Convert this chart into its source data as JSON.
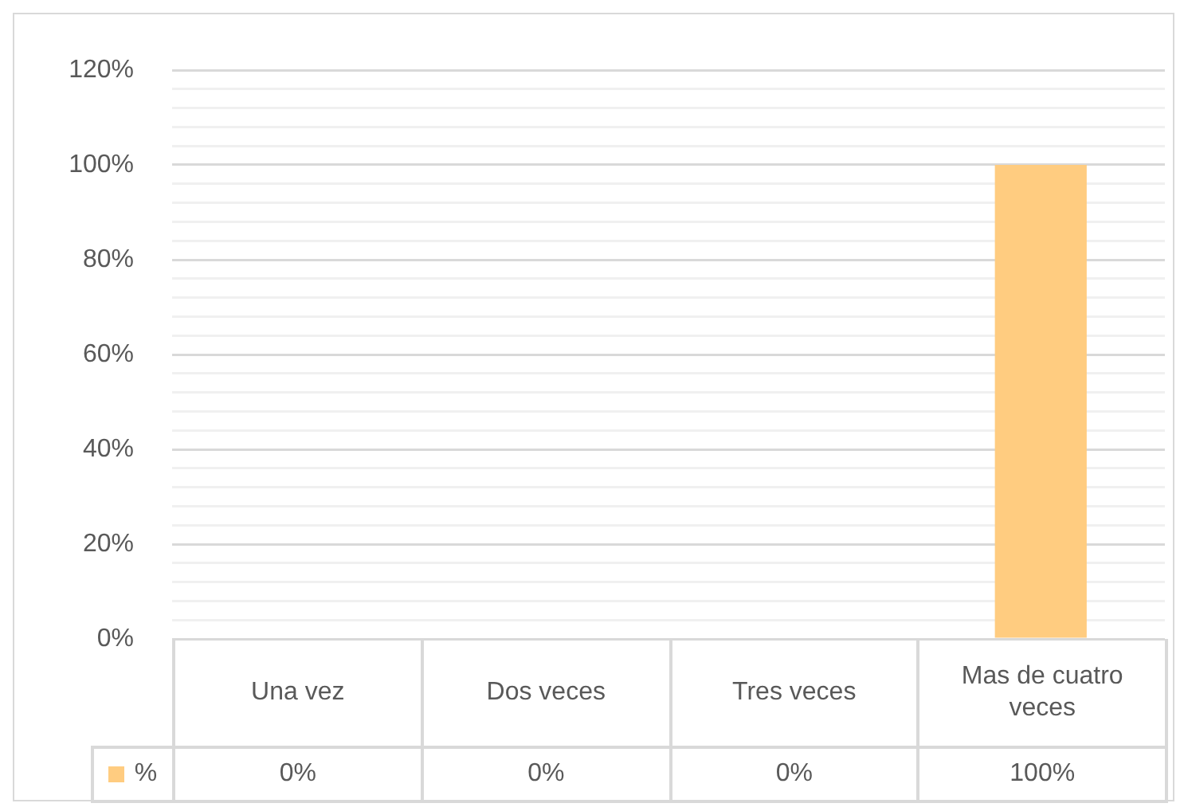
{
  "chart_data": {
    "type": "bar",
    "categories": [
      "Una vez",
      "Dos veces",
      "Tres veces",
      "Mas de cuatro veces"
    ],
    "series": [
      {
        "name": "%",
        "color": "#ffcc80",
        "values": [
          0,
          0,
          0,
          100
        ],
        "value_labels": [
          "0%",
          "0%",
          "0%",
          "100%"
        ]
      }
    ],
    "ylim": [
      0,
      120
    ],
    "yticks": [
      {
        "value": 0,
        "label": "0%"
      },
      {
        "value": 4,
        "label": null
      },
      {
        "value": 8,
        "label": null
      },
      {
        "value": 12,
        "label": null
      },
      {
        "value": 16,
        "label": null
      },
      {
        "value": 20,
        "label": "20%"
      },
      {
        "value": 24,
        "label": null
      },
      {
        "value": 28,
        "label": null
      },
      {
        "value": 32,
        "label": null
      },
      {
        "value": 36,
        "label": null
      },
      {
        "value": 40,
        "label": "40%"
      },
      {
        "value": 44,
        "label": null
      },
      {
        "value": 48,
        "label": null
      },
      {
        "value": 52,
        "label": null
      },
      {
        "value": 56,
        "label": null
      },
      {
        "value": 60,
        "label": "60%"
      },
      {
        "value": 64,
        "label": null
      },
      {
        "value": 68,
        "label": null
      },
      {
        "value": 72,
        "label": null
      },
      {
        "value": 76,
        "label": null
      },
      {
        "value": 80,
        "label": "80%"
      },
      {
        "value": 84,
        "label": null
      },
      {
        "value": 88,
        "label": null
      },
      {
        "value": 92,
        "label": null
      },
      {
        "value": 96,
        "label": null
      },
      {
        "value": 100,
        "label": "100%"
      },
      {
        "value": 104,
        "label": null
      },
      {
        "value": 108,
        "label": null
      },
      {
        "value": 112,
        "label": null
      },
      {
        "value": 116,
        "label": null
      },
      {
        "value": 120,
        "label": "120%"
      }
    ],
    "grid": true,
    "legend": "bottom"
  }
}
